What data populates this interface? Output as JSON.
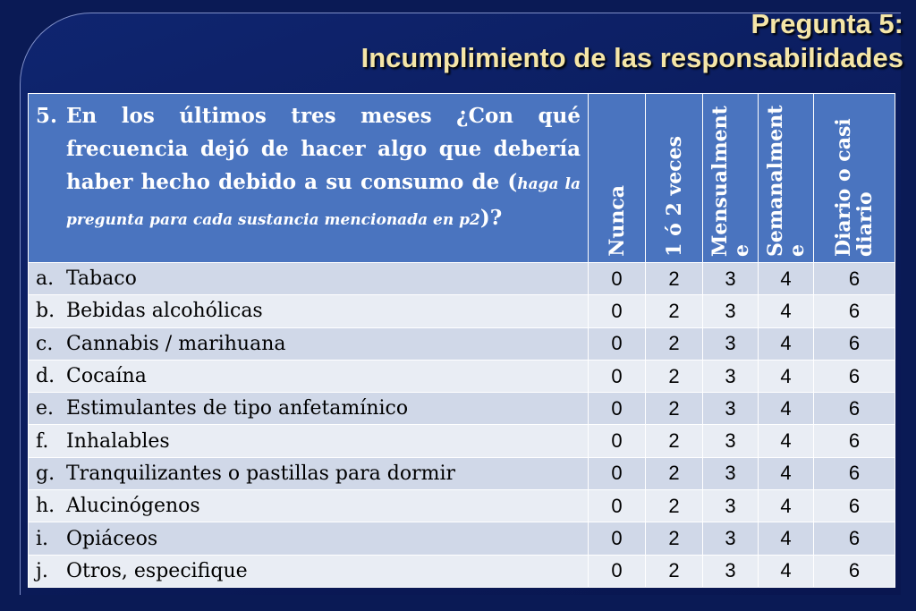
{
  "title": {
    "line1": "Pregunta 5:",
    "line2": "Incumplimiento de las responsabilidades"
  },
  "question": {
    "number": "5.",
    "text_main": "En los últimos tres meses ¿Con qué frecuencia dejó de hacer algo que debería haber hecho debido a su consumo de (",
    "text_small": "haga la pregunta para cada sustancia mencionada en p2",
    "text_end": ")?"
  },
  "columns": [
    "Nunca",
    "1 ó 2 veces",
    "Mensualmente",
    "Semanalmente",
    "Diario o casi diario"
  ],
  "rows": [
    {
      "letter": "a.",
      "label": "Tabaco",
      "values": [
        "0",
        "2",
        "3",
        "4",
        "6"
      ]
    },
    {
      "letter": "b.",
      "label": "Bebidas alcohólicas",
      "values": [
        "0",
        "2",
        "3",
        "4",
        "6"
      ]
    },
    {
      "letter": "c.",
      "label": "Cannabis / marihuana",
      "values": [
        "0",
        "2",
        "3",
        "4",
        "6"
      ]
    },
    {
      "letter": "d.",
      "label": "Cocaína",
      "values": [
        "0",
        "2",
        "3",
        "4",
        "6"
      ]
    },
    {
      "letter": "e.",
      "label": "Estimulantes de tipo anfetamínico",
      "values": [
        "0",
        "2",
        "3",
        "4",
        "6"
      ]
    },
    {
      "letter": "f.",
      "label": "Inhalables",
      "values": [
        "0",
        "2",
        "3",
        "4",
        "6"
      ]
    },
    {
      "letter": "g.",
      "label": "Tranquilizantes o pastillas para dormir",
      "values": [
        "0",
        "2",
        "3",
        "4",
        "6"
      ]
    },
    {
      "letter": "h.",
      "label": "Alucinógenos",
      "values": [
        "0",
        "2",
        "3",
        "4",
        "6"
      ]
    },
    {
      "letter": "i.",
      "label": "Opiáceos",
      "values": [
        "0",
        "2",
        "3",
        "4",
        "6"
      ]
    },
    {
      "letter": "j.",
      "label": "Otros, especifique",
      "values": [
        "0",
        "2",
        "3",
        "4",
        "6"
      ]
    }
  ]
}
